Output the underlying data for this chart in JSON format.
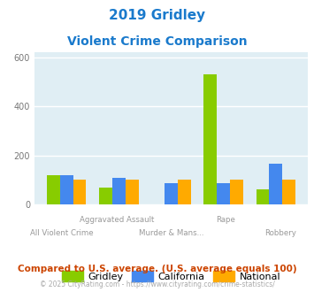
{
  "title_line1": "2019 Gridley",
  "title_line2": "Violent Crime Comparison",
  "categories": [
    "All Violent Crime",
    "Aggravated Assault",
    "Murder & Mans...",
    "Rape",
    "Robbery"
  ],
  "gridley": [
    120,
    68,
    0,
    530,
    60
  ],
  "california": [
    120,
    110,
    88,
    88,
    168
  ],
  "national": [
    100,
    100,
    100,
    100,
    100
  ],
  "color_gridley": "#88cc00",
  "color_california": "#4488ee",
  "color_national": "#ffaa00",
  "ylim": [
    0,
    620
  ],
  "yticks": [
    0,
    200,
    400,
    600
  ],
  "bg_color": "#e0eef4",
  "legend_labels": [
    "Gridley",
    "California",
    "National"
  ],
  "footnote1": "Compared to U.S. average. (U.S. average equals 100)",
  "footnote2": "© 2025 CityRating.com - https://www.cityrating.com/crime-statistics/",
  "title_color": "#1a7acc",
  "footnote1_color": "#cc4400",
  "footnote2_color": "#aaaaaa",
  "url_color": "#4488ee"
}
